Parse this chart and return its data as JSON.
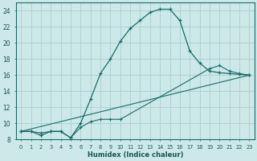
{
  "xlabel": "Humidex (Indice chaleur)",
  "background_color": "#cce8e8",
  "grid_color": "#aacfcf",
  "line_color": "#1a6b6b",
  "xlim": [
    -0.5,
    23.5
  ],
  "ylim": [
    8,
    25
  ],
  "xticks": [
    0,
    1,
    2,
    3,
    4,
    5,
    6,
    7,
    8,
    9,
    10,
    11,
    12,
    13,
    14,
    15,
    16,
    17,
    18,
    19,
    20,
    21,
    22,
    23
  ],
  "yticks": [
    8,
    10,
    12,
    14,
    16,
    18,
    20,
    22,
    24
  ],
  "line1_x": [
    0,
    1,
    2,
    3,
    4,
    5,
    6,
    7,
    8,
    9,
    10,
    11,
    12,
    13,
    14,
    15,
    16,
    17,
    18,
    19,
    20,
    21,
    22,
    23
  ],
  "line1_y": [
    9.0,
    9.0,
    8.5,
    9.0,
    9.0,
    8.2,
    10.0,
    13.0,
    16.2,
    18.0,
    20.2,
    21.8,
    22.8,
    23.8,
    24.2,
    24.2,
    22.8,
    19.0,
    17.5,
    16.5,
    16.3,
    16.2,
    16.1,
    16.0
  ],
  "line2_x": [
    0,
    23
  ],
  "line2_y": [
    9.0,
    16.0
  ],
  "line3_x": [
    0,
    1,
    2,
    3,
    4,
    5,
    6,
    7,
    8,
    9,
    10,
    19,
    20,
    21,
    22,
    23
  ],
  "line3_y": [
    9.0,
    9.0,
    8.8,
    9.0,
    9.0,
    8.2,
    9.5,
    10.2,
    10.5,
    10.5,
    10.5,
    16.8,
    17.2,
    16.5,
    16.2,
    16.0
  ]
}
